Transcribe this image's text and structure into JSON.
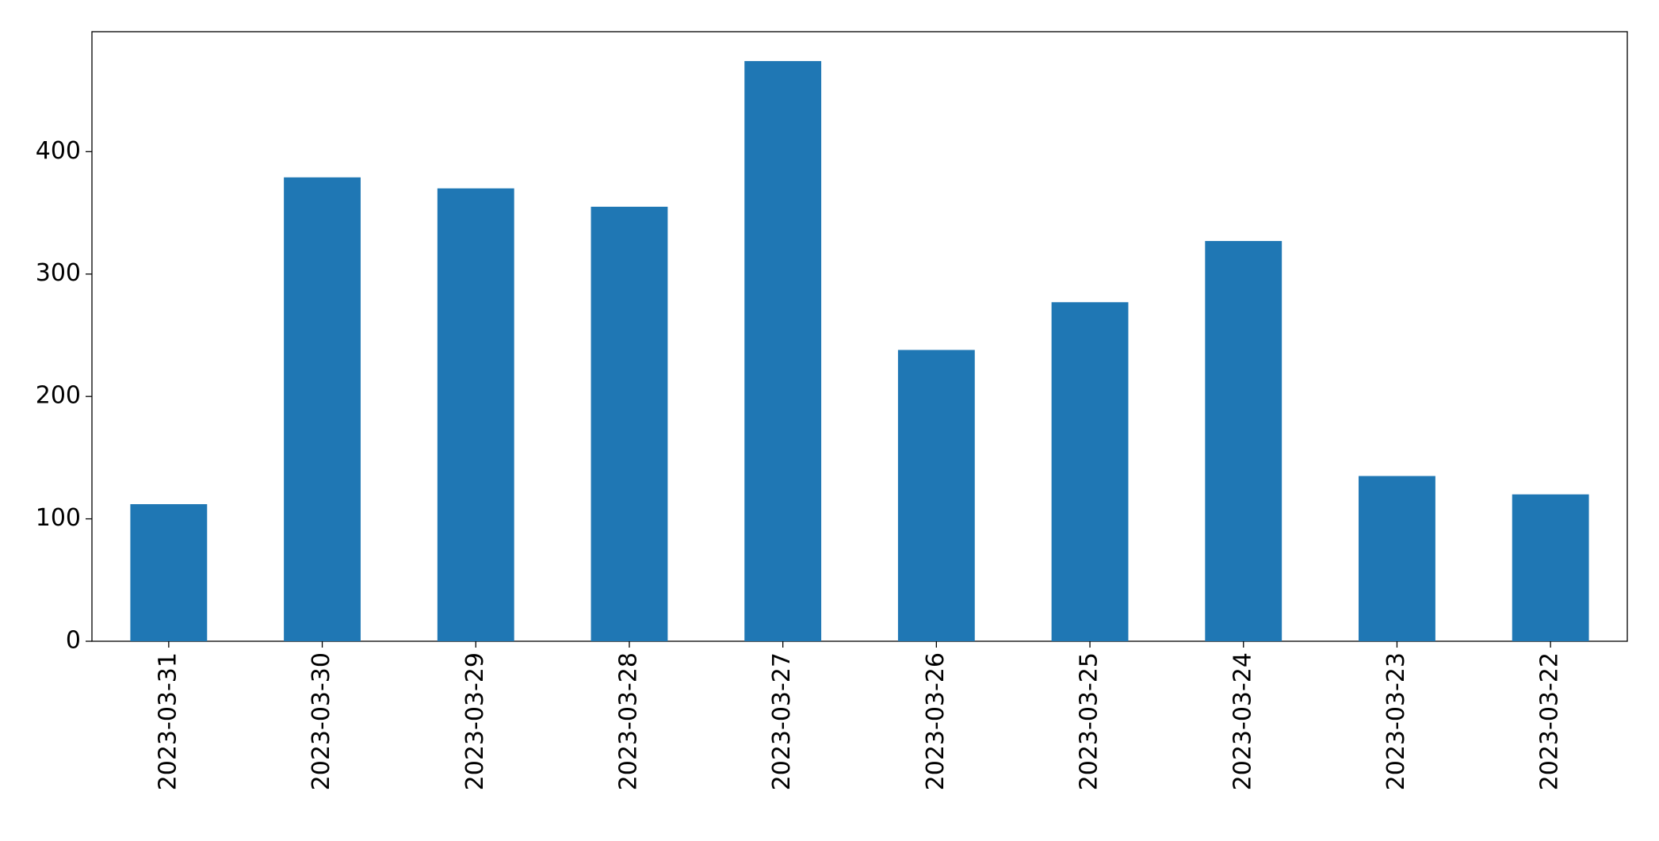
{
  "chart_data": {
    "type": "bar",
    "categories": [
      "2023-03-31",
      "2023-03-30",
      "2023-03-29",
      "2023-03-28",
      "2023-03-27",
      "2023-03-26",
      "2023-03-25",
      "2023-03-24",
      "2023-03-23",
      "2023-03-22"
    ],
    "values": [
      112,
      379,
      370,
      355,
      474,
      238,
      277,
      327,
      135,
      120
    ],
    "color": "#1f77b4",
    "ylim": [
      0,
      498
    ],
    "yticks": [
      0,
      100,
      200,
      300,
      400
    ],
    "grid": false
  }
}
